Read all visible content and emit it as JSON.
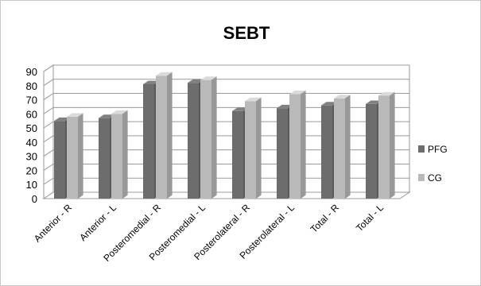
{
  "chart_data": {
    "type": "bar",
    "title": "SEBT",
    "categories": [
      "Anterior - R",
      "Anterior - L",
      "Posteromedial - R",
      "Posteromedial - L",
      "Posterolateral - R",
      "Posterolateral - L",
      "Total - R",
      "Total - L"
    ],
    "series": [
      {
        "name": "PFG",
        "values": [
          55,
          57,
          81,
          82,
          62,
          64,
          66,
          67
        ],
        "color": "#6d6d6d"
      },
      {
        "name": "CG",
        "values": [
          58,
          60,
          87,
          84,
          69,
          74,
          71,
          73
        ],
        "color": "#b9b9b9"
      }
    ],
    "ylim": [
      0,
      90
    ],
    "yticks": [
      0,
      10,
      20,
      30,
      40,
      50,
      60,
      70,
      80,
      90
    ],
    "xlabel": "",
    "ylabel": "",
    "grid": true,
    "legend_position": "right",
    "style": "3d-clustered-bar"
  }
}
